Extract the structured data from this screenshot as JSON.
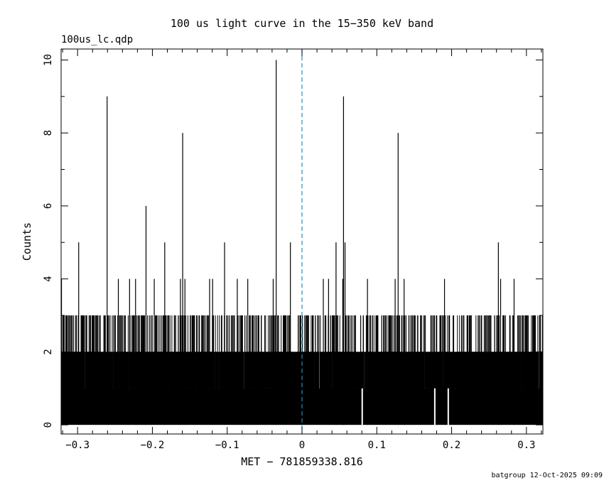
{
  "chart_data": {
    "type": "bar",
    "title": "100 us light curve in the 15−350 keV band",
    "file_label": "100us_lc.qdp",
    "xlabel": "MET − 781859338.816",
    "ylabel": "Counts",
    "xlim": [
      -0.322,
      0.322
    ],
    "ylim": [
      -0.25,
      10.3
    ],
    "xticks": [
      -0.3,
      -0.2,
      -0.1,
      0,
      0.1,
      0.2,
      0.3
    ],
    "xtick_labels": [
      "−0.3",
      "−0.2",
      "−0.1",
      "0",
      "0.1",
      "0.2",
      "0.3"
    ],
    "yticks": [
      0,
      2,
      4,
      6,
      8,
      10
    ],
    "ytick_labels": [
      "0",
      "2",
      "4",
      "6",
      "8",
      "10"
    ],
    "bin_width": 0.0001,
    "baseline_counts": 1,
    "trigger_line_x": 0,
    "trigger_line_color": "#1f8fbf",
    "grid": false,
    "legend": "none",
    "peaks": [
      {
        "x": -0.3215,
        "y": 4
      },
      {
        "x": -0.2985,
        "y": 5
      },
      {
        "x": -0.2605,
        "y": 9
      },
      {
        "x": -0.2455,
        "y": 4
      },
      {
        "x": -0.2305,
        "y": 4
      },
      {
        "x": -0.2225,
        "y": 4
      },
      {
        "x": -0.2085,
        "y": 6
      },
      {
        "x": -0.1975,
        "y": 4
      },
      {
        "x": -0.1835,
        "y": 5
      },
      {
        "x": -0.1625,
        "y": 4
      },
      {
        "x": -0.1595,
        "y": 8
      },
      {
        "x": -0.1565,
        "y": 4
      },
      {
        "x": -0.1235,
        "y": 4
      },
      {
        "x": -0.1195,
        "y": 4
      },
      {
        "x": -0.1035,
        "y": 5
      },
      {
        "x": -0.0865,
        "y": 4
      },
      {
        "x": -0.0725,
        "y": 4
      },
      {
        "x": -0.0385,
        "y": 4
      },
      {
        "x": -0.0345,
        "y": 10
      },
      {
        "x": -0.0155,
        "y": 5
      },
      {
        "x": 0.0285,
        "y": 4
      },
      {
        "x": 0.0355,
        "y": 4
      },
      {
        "x": 0.0455,
        "y": 5
      },
      {
        "x": 0.0545,
        "y": 4
      },
      {
        "x": 0.0555,
        "y": 9
      },
      {
        "x": 0.0575,
        "y": 5
      },
      {
        "x": 0.0875,
        "y": 4
      },
      {
        "x": 0.1245,
        "y": 4
      },
      {
        "x": 0.1285,
        "y": 8
      },
      {
        "x": 0.1365,
        "y": 4
      },
      {
        "x": 0.1905,
        "y": 4
      },
      {
        "x": 0.2655,
        "y": 4
      },
      {
        "x": 0.2625,
        "y": 5
      },
      {
        "x": 0.2835,
        "y": 4
      }
    ],
    "gaps_zero": [
      0.0805,
      0.1775,
      0.1955
    ]
  },
  "footer": {
    "stamp": "batgroup 12-Oct-2025 09:09"
  }
}
